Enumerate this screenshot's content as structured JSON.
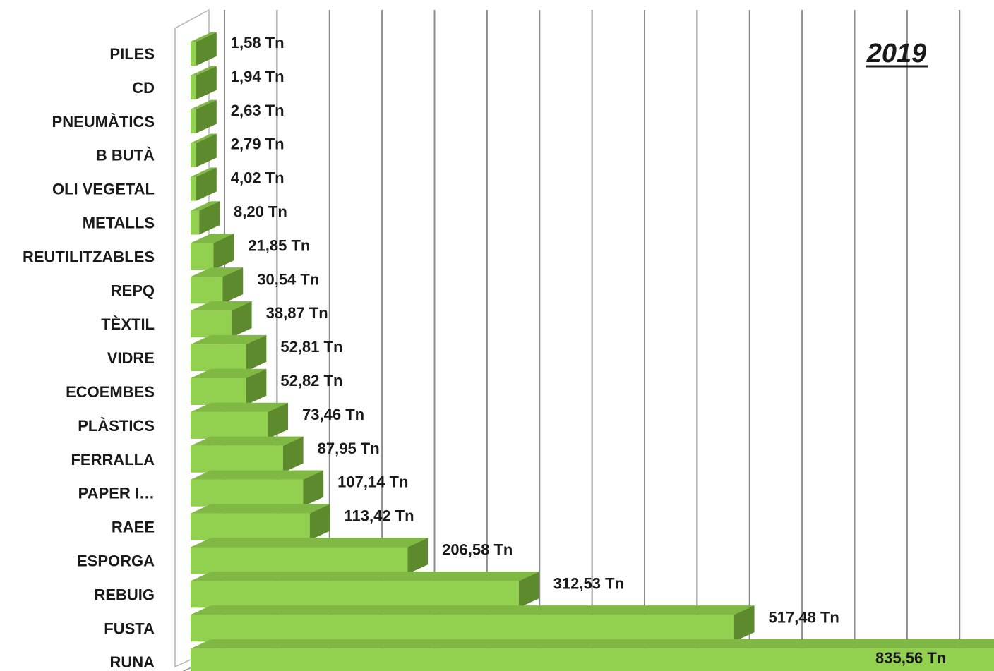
{
  "chart_data": {
    "type": "bar",
    "orientation": "horizontal",
    "title": "2019",
    "categories": [
      "PILES",
      "CD",
      "PNEUMÀTICS",
      "B BUTÀ",
      "OLI VEGETAL",
      "METALLS",
      "REUTILITZABLES",
      "REPQ",
      "TÈXTIL",
      "VIDRE",
      "ECOEMBES",
      "PLÀSTICS",
      "FERRALLA",
      "PAPER I…",
      "RAEE",
      "ESPORGA",
      "REBUIG",
      "FUSTA",
      "RUNA"
    ],
    "values": [
      1.58,
      1.94,
      2.63,
      2.79,
      4.02,
      8.2,
      21.85,
      30.54,
      38.87,
      52.81,
      52.82,
      73.46,
      87.95,
      107.14,
      113.42,
      206.58,
      312.53,
      517.48,
      835.56
    ],
    "labels": [
      "1,58 Tn",
      "1,94 Tn",
      "2,63 Tn",
      "2,79 Tn",
      "4,02 Tn",
      "8,20 Tn",
      "21,85 Tn",
      "30,54 Tn",
      "38,87 Tn",
      "52,81 Tn",
      "52,82 Tn",
      "73,46 Tn",
      "87,95 Tn",
      "107,14 Tn",
      "113,42 Tn",
      "206,58 Tn",
      "312,53 Tn",
      "517,48 Tn",
      "835,56 Tn"
    ],
    "xlim": [
      0,
      800
    ],
    "grid": true,
    "legend": "none",
    "colors": {
      "bar_front": "#92d050",
      "bar_top": "#7fb842",
      "bar_side": "#5e8a2e",
      "grid": "#8c8c8c"
    }
  }
}
